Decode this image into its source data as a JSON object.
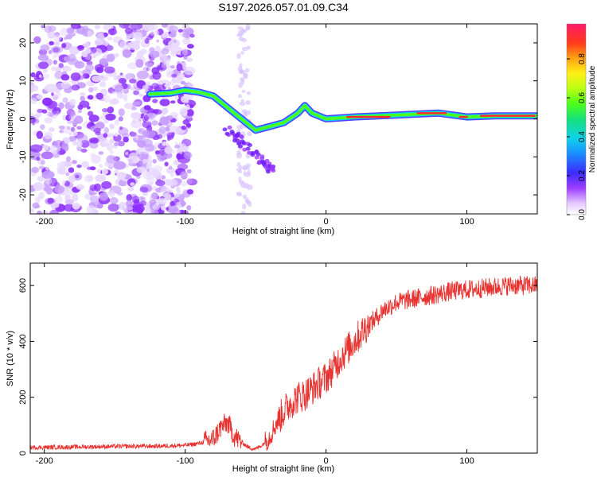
{
  "title": "S197.2026.057.01.09.C34",
  "chart_data": [
    {
      "type": "heatmap",
      "name": "spectrogram",
      "xlabel": "Height of straight line (km)",
      "ylabel": "Frequency (Hz)",
      "xlim": [
        -210,
        150
      ],
      "ylim": [
        -25,
        25
      ],
      "xticks": [
        -200,
        -100,
        0,
        100
      ],
      "xtick_labels": [
        "-200",
        "-100",
        "0",
        "100"
      ],
      "yticks": [
        -20,
        -10,
        0,
        10,
        20
      ],
      "ytick_labels": [
        "-20",
        "-10",
        "0",
        "10",
        "20"
      ],
      "colorbar": {
        "label": "Normalized spectral amplitude",
        "range": [
          0,
          0.98
        ],
        "ticks": [
          0,
          0.2,
          0.4,
          0.6,
          0.8
        ],
        "tick_labels": [
          "0.0",
          "0.2",
          "0.4",
          "0.6",
          "0.8"
        ]
      },
      "ridge": {
        "description": "dominant frequency track",
        "x": [
          -125,
          -110,
          -100,
          -90,
          -80,
          -70,
          -60,
          -50,
          -40,
          -30,
          -20,
          -15,
          -10,
          0,
          20,
          50,
          80,
          100,
          120,
          150
        ],
        "y": [
          6.5,
          6.8,
          7.5,
          7,
          6,
          3,
          0,
          -3,
          -2,
          -1,
          1.5,
          3.5,
          1.5,
          0,
          0.5,
          1,
          1.5,
          0.5,
          0.8,
          0.8
        ]
      },
      "scatter_extent_x": [
        -210,
        -95
      ]
    },
    {
      "type": "line",
      "name": "snr",
      "xlabel": "Height of straight line (km)",
      "ylabel": "SNR (10 * v/v)",
      "xlim": [
        -210,
        150
      ],
      "ylim": [
        0,
        680
      ],
      "xticks": [
        -200,
        -100,
        0,
        100
      ],
      "xtick_labels": [
        "-200",
        "-100",
        "0",
        "100"
      ],
      "yticks": [
        0,
        200,
        400,
        600
      ],
      "ytick_labels": [
        "0",
        "200",
        "400",
        "600"
      ],
      "color": "#e8322f",
      "x": [
        -210,
        -180,
        -150,
        -120,
        -100,
        -90,
        -80,
        -75,
        -70,
        -65,
        -60,
        -55,
        -50,
        -45,
        -40,
        -35,
        -30,
        -25,
        -20,
        -15,
        -10,
        -5,
        0,
        5,
        10,
        15,
        20,
        25,
        30,
        35,
        40,
        50,
        60,
        70,
        80,
        90,
        100,
        110,
        120,
        130,
        140,
        150
      ],
      "y": [
        20,
        22,
        24,
        25,
        28,
        35,
        50,
        90,
        110,
        60,
        40,
        20,
        15,
        30,
        60,
        110,
        150,
        180,
        200,
        210,
        230,
        250,
        270,
        300,
        340,
        370,
        400,
        430,
        460,
        480,
        510,
        540,
        550,
        560,
        570,
        580,
        585,
        590,
        595,
        600,
        600,
        600
      ]
    }
  ]
}
